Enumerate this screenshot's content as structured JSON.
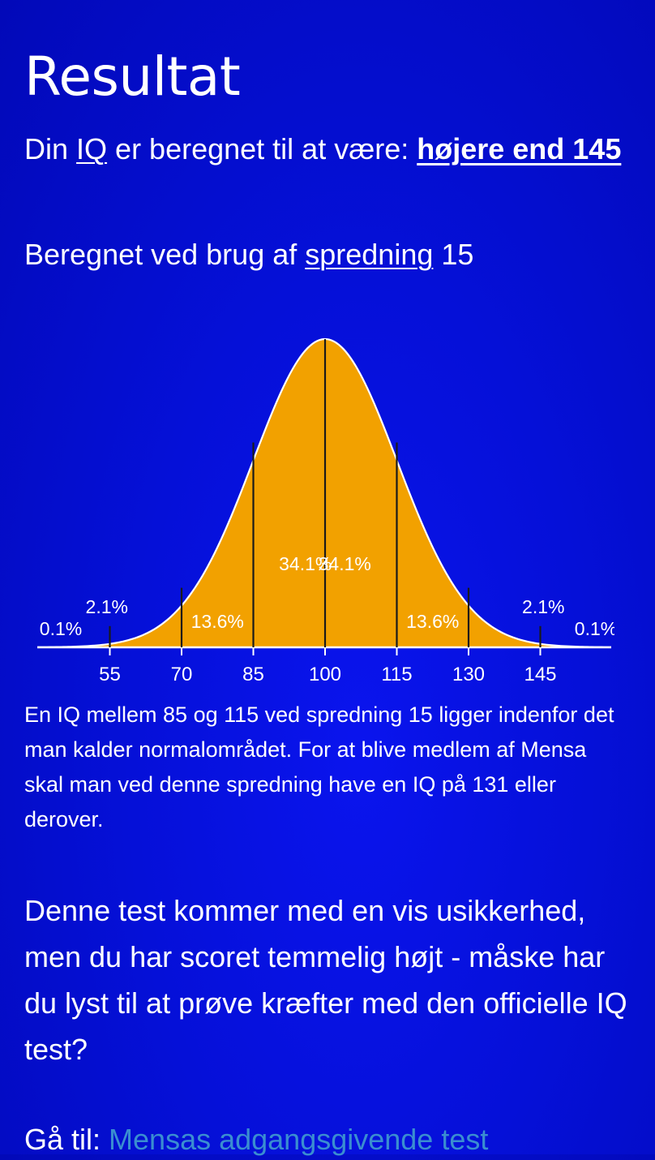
{
  "page": {
    "title": "Resultat",
    "result_prefix": "Din ",
    "iq_link": "IQ",
    "result_middle": " er beregnet til at være: ",
    "result_value": "højere end 145",
    "spread_prefix": "Beregnet ved brug af ",
    "spread_link": "spredning",
    "spread_value": " 15",
    "explanation": "En IQ mellem 85 og 115 ved spredning 15 ligger indenfor det man kalder normalområdet. For at blive medlem af Mensa skal man ved denne spredning have en IQ på 131 eller derover.",
    "uncertainty": "Denne test kommer med en vis usikkerhed, men du har scoret temmelig højt - måske har du lyst til at prøve kræfter med den officielle IQ test?",
    "goto_prefix": "Gå til: ",
    "goto_link": "Mensas adgangsgivende test"
  },
  "chart_data": {
    "type": "area",
    "title": "",
    "xlabel": "",
    "ylabel": "",
    "mean": 100,
    "sd": 15,
    "x_ticks": [
      55,
      70,
      85,
      100,
      115,
      130,
      145
    ],
    "band_labels": [
      {
        "label": "0.1%",
        "from": 40,
        "to": 55
      },
      {
        "label": "2.1%",
        "from": 55,
        "to": 70
      },
      {
        "label": "13.6%",
        "from": 70,
        "to": 85
      },
      {
        "label": "34.1%",
        "from": 85,
        "to": 100
      },
      {
        "label": "34.1%",
        "from": 100,
        "to": 115
      },
      {
        "label": "13.6%",
        "from": 115,
        "to": 130
      },
      {
        "label": "2.1%",
        "from": 130,
        "to": 145
      },
      {
        "label": "0.1%",
        "from": 145,
        "to": 160
      }
    ],
    "fill_color": "#f2a100",
    "outline_color": "#ffffff",
    "divider_color": "#1a1a1a"
  }
}
